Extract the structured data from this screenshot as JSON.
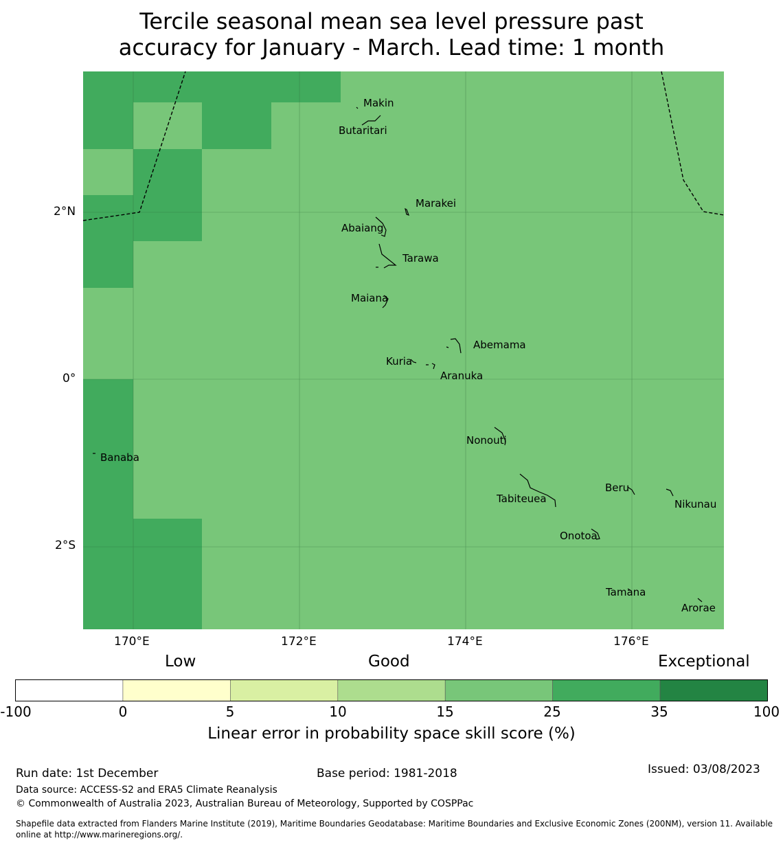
{
  "title_line1": "Tercile seasonal mean sea level pressure past",
  "title_line2": "accuracy for January - March. Lead time: 1 month",
  "map": {
    "lon_ticks": [
      "170°E",
      "172°E",
      "174°E",
      "176°E"
    ],
    "lat_ticks": [
      "2°N",
      "0°",
      "2°S"
    ],
    "places": [
      {
        "name": "Makin",
        "lon": 172.9,
        "lat": 3.3
      },
      {
        "name": "Butaritari",
        "lon": 172.8,
        "lat": 3.1
      },
      {
        "name": "Marakei",
        "lon": 173.3,
        "lat": 2.0
      },
      {
        "name": "Abaiang",
        "lon": 173.0,
        "lat": 1.85
      },
      {
        "name": "Tarawa",
        "lon": 173.0,
        "lat": 1.4
      },
      {
        "name": "Maiana",
        "lon": 173.0,
        "lat": 0.9
      },
      {
        "name": "Abemama",
        "lon": 173.9,
        "lat": 0.4
      },
      {
        "name": "Kuria",
        "lon": 173.4,
        "lat": 0.2
      },
      {
        "name": "Aranuka",
        "lon": 173.6,
        "lat": 0.15
      },
      {
        "name": "Nonouti",
        "lon": 174.4,
        "lat": -0.6
      },
      {
        "name": "Banaba",
        "lon": 169.5,
        "lat": -0.9
      },
      {
        "name": "Tabiteuea",
        "lon": 174.8,
        "lat": -1.3
      },
      {
        "name": "Beru",
        "lon": 176.0,
        "lat": -1.3
      },
      {
        "name": "Nikunau",
        "lon": 176.45,
        "lat": -1.35
      },
      {
        "name": "Onotoa",
        "lon": 175.55,
        "lat": -1.8
      },
      {
        "name": "Tamana",
        "lon": 175.95,
        "lat": -2.5
      },
      {
        "name": "Arorae",
        "lon": 176.8,
        "lat": -2.65
      }
    ]
  },
  "colorbar": {
    "category_labels": [
      "Low",
      "Good",
      "Exceptional"
    ],
    "tick_labels": [
      "-100",
      "0",
      "5",
      "10",
      "15",
      "25",
      "35",
      "100"
    ],
    "colors": [
      "#ffffff",
      "#ffffcc",
      "#d9f0a3",
      "#addd8e",
      "#78c679",
      "#41ab5d",
      "#238443"
    ],
    "label": "Linear error in probability space skill score (%)"
  },
  "footer": {
    "run_date": "Run date: 1st December",
    "base_period": "Base period: 1981-2018",
    "issued": "Issued: 03/08/2023",
    "data_source": "Data source: ACCESS-S2 and ERA5 Climate Reanalysis",
    "copyright": "© Commonwealth of Australia 2023, Australian Bureau of Meteorology, Supported by COSPPac",
    "shapefile": "Shapefile data extracted from Flanders Marine Institute (2019), Maritime Boundaries Geodatabase: Maritime Boundaries and Exclusive Economic Zones (200NM), version 11. Available online at http://www.marineregions.org/."
  }
}
